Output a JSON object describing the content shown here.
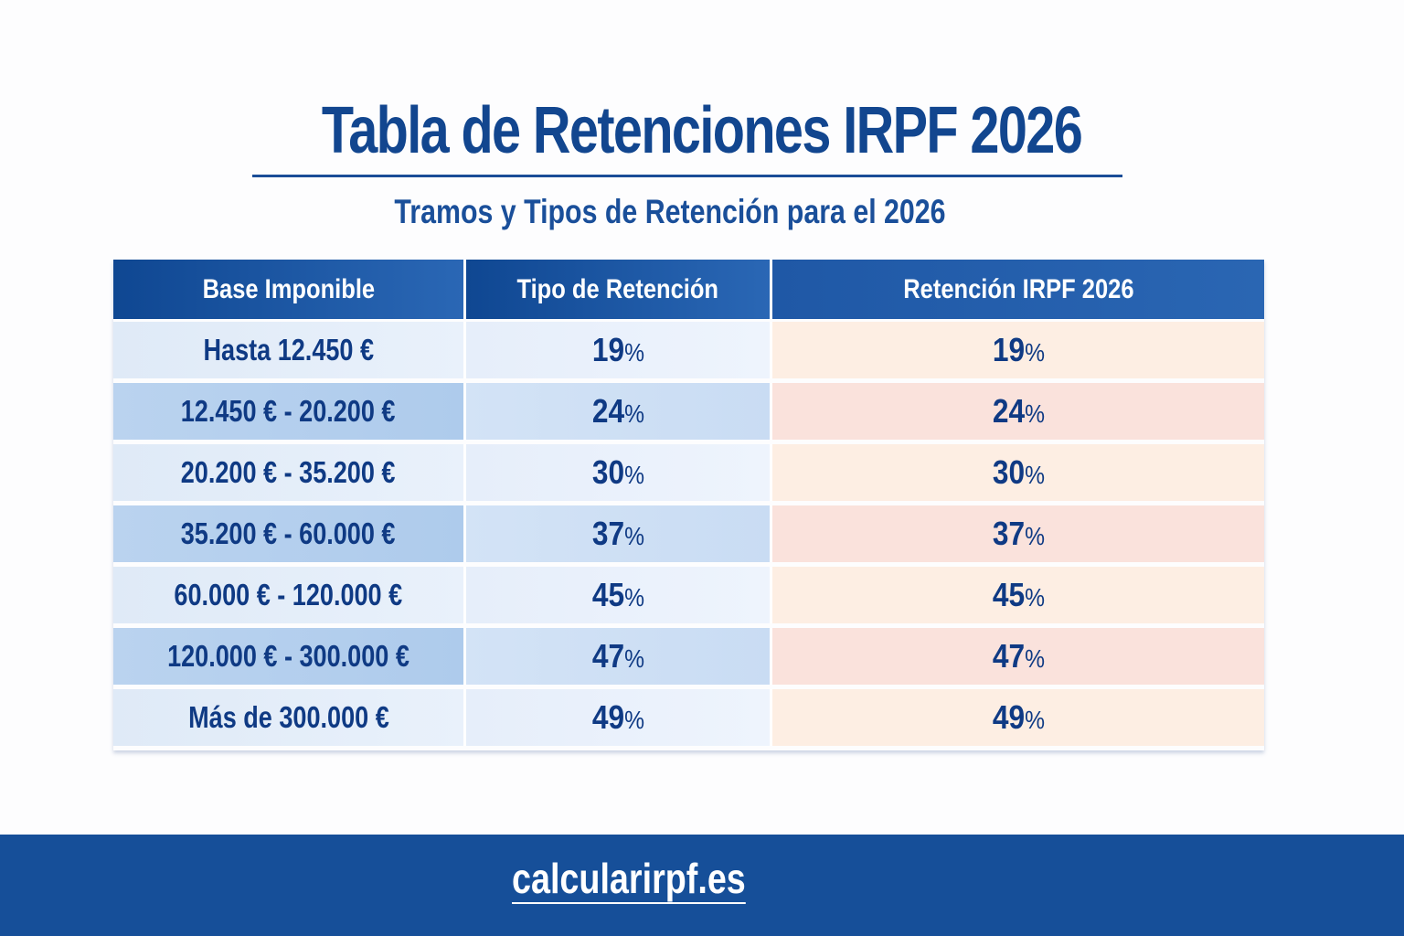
{
  "header": {
    "title": "Tabla de Retenciones IRPF 2026",
    "subtitle": "Tramos y Tipos de Retención para el 2026"
  },
  "table": {
    "columns": [
      "Base Imponible",
      "Tipo de Retención",
      "Retención IRPF 2026"
    ],
    "rows": [
      {
        "base": "Hasta 12.450 €",
        "tipo": "19",
        "retencion": "19"
      },
      {
        "base": "12.450 € - 20.200 €",
        "tipo": "24",
        "retencion": "24"
      },
      {
        "base": "20.200 € - 35.200 €",
        "tipo": "30",
        "retencion": "30"
      },
      {
        "base": "35.200 € - 60.000 €",
        "tipo": "37",
        "retencion": "37"
      },
      {
        "base": "60.000 € - 120.000 €",
        "tipo": "45",
        "retencion": "45"
      },
      {
        "base": "120.000 € - 300.000 €",
        "tipo": "47",
        "retencion": "47"
      },
      {
        "base": "Más de 300.000 €",
        "tipo": "49",
        "retencion": "49"
      }
    ],
    "percent_symbol": "%"
  },
  "footer": {
    "link": "calcularirpf.es"
  },
  "colors": {
    "primary": "#12468f",
    "header_bg": "#1a55a0",
    "footer_bg": "#164f99",
    "row_blue_light": "#e6eefa",
    "row_blue_dark": "#bad3ef",
    "row_peach_light": "#fdeee3",
    "row_peach_dark": "#fae2dc"
  }
}
